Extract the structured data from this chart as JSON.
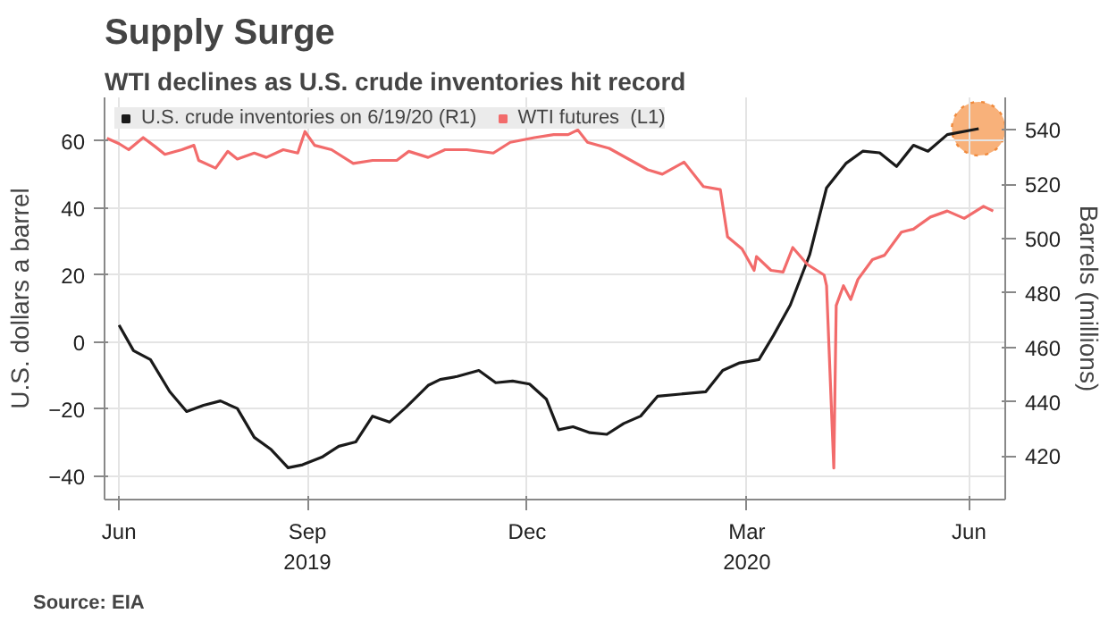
{
  "chart_data": {
    "type": "line",
    "title": "Supply Surge",
    "subtitle": "WTI declines as U.S. crude inventories hit record",
    "ylabel": "U.S. dollars a barrel",
    "y2label": "Barrels (millions)",
    "annotations": [
      "Source: EIA"
    ],
    "xlim": [
      "2019-06-23",
      "2020-06-30"
    ],
    "xticks": [
      {
        "value": "2019-06-29",
        "label": "Jun"
      },
      {
        "value": "2019-09-15",
        "label": "Sep\n2019"
      },
      {
        "value": "2019-12-15",
        "label": "Dec"
      },
      {
        "value": "2020-03-15",
        "label": "Mar\n2020"
      },
      {
        "value": "2020-06-15",
        "label": "Jun"
      }
    ],
    "ylim": [
      -47,
      73
    ],
    "yticks": [
      -40,
      -20,
      0,
      20,
      40,
      60
    ],
    "y2lim": [
      404,
      552
    ],
    "y2ticks": [
      420,
      440,
      460,
      480,
      500,
      520,
      540
    ],
    "grid": true,
    "legend": "top left",
    "line_style": "solid",
    "series": [
      {
        "name": "U.S. crude inventories on 6/19/20 (R1)",
        "color": "#1a1a1a",
        "axis": "y2",
        "x": [
          "2019-06-29",
          "2019-07-05",
          "2019-07-12",
          "2019-07-20",
          "2019-07-27",
          "2019-08-03",
          "2019-08-10",
          "2019-08-17",
          "2019-08-24",
          "2019-08-31",
          "2019-09-07",
          "2019-09-13",
          "2019-09-21",
          "2019-09-28",
          "2019-10-05",
          "2019-10-12",
          "2019-10-19",
          "2019-10-26",
          "2019-11-04",
          "2019-11-09",
          "2019-11-16",
          "2019-11-25",
          "2019-12-02",
          "2019-12-09",
          "2019-12-16",
          "2019-12-23",
          "2019-12-28",
          "2020-01-03",
          "2020-01-10",
          "2020-01-17",
          "2020-01-24",
          "2020-01-31",
          "2020-02-07",
          "2020-02-27",
          "2020-03-05",
          "2020-03-12",
          "2020-03-20",
          "2020-03-26",
          "2020-04-02",
          "2020-04-10",
          "2020-04-17",
          "2020-04-25",
          "2020-05-02",
          "2020-05-09",
          "2020-05-16",
          "2020-05-23",
          "2020-05-29",
          "2020-06-06",
          "2020-06-19"
        ],
        "values": [
          468.2,
          458.8,
          455.5,
          443.7,
          436.4,
          438.7,
          440.3,
          437.5,
          426.9,
          422.4,
          415.7,
          416.8,
          419.6,
          423.6,
          425.2,
          434.7,
          432.5,
          438.1,
          446.0,
          448.2,
          449.3,
          451.5,
          447.0,
          447.6,
          446.5,
          440.9,
          429.7,
          430.8,
          428.6,
          428.0,
          432.0,
          434.7,
          442.0,
          443.7,
          451.5,
          454.3,
          455.5,
          464.4,
          475.6,
          494.1,
          518.7,
          527.7,
          532.2,
          531.6,
          526.6,
          534.4,
          532.2,
          538.3,
          540.5
        ]
      },
      {
        "name": "WTI futures  (L1)",
        "color": "#f26b6b",
        "x": [
          "2019-06-24",
          "2019-06-29",
          "2019-07-03",
          "2019-07-09",
          "2019-07-14",
          "2019-07-18",
          "2019-07-25",
          "2019-07-30",
          "2019-08-01",
          "2019-08-08",
          "2019-08-13",
          "2019-08-17",
          "2019-08-24",
          "2019-08-29",
          "2019-09-05",
          "2019-09-11",
          "2019-09-14",
          "2019-09-18",
          "2019-09-25",
          "2019-10-04",
          "2019-10-12",
          "2019-10-22",
          "2019-10-27",
          "2019-11-04",
          "2019-11-11",
          "2019-11-20",
          "2019-12-01",
          "2019-12-08",
          "2019-12-18",
          "2019-12-26",
          "2020-01-01",
          "2020-01-05",
          "2020-01-09",
          "2020-01-18",
          "2020-01-26",
          "2020-02-03",
          "2020-02-09",
          "2020-02-18",
          "2020-02-26",
          "2020-03-04",
          "2020-03-07",
          "2020-03-13",
          "2020-03-18",
          "2020-03-19",
          "2020-03-25",
          "2020-03-30",
          "2020-04-03",
          "2020-04-09",
          "2020-04-16",
          "2020-04-17",
          "2020-04-20",
          "2020-04-21",
          "2020-04-24",
          "2020-04-27",
          "2020-04-30",
          "2020-05-06",
          "2020-05-11",
          "2020-05-18",
          "2020-05-23",
          "2020-05-30",
          "2020-06-06",
          "2020-06-13",
          "2020-06-21",
          "2020-06-25"
        ],
        "values": [
          60.8,
          59.2,
          57.4,
          61.0,
          58.3,
          56.0,
          57.4,
          58.7,
          54.2,
          51.9,
          56.9,
          54.6,
          56.4,
          55.1,
          57.4,
          56.4,
          62.8,
          58.7,
          57.4,
          53.3,
          54.2,
          54.2,
          56.9,
          55.1,
          57.4,
          57.4,
          56.4,
          59.6,
          61.0,
          61.9,
          61.9,
          63.3,
          59.6,
          57.8,
          54.6,
          51.4,
          50.1,
          53.7,
          46.4,
          45.5,
          31.4,
          27.8,
          21.4,
          25.5,
          21.4,
          20.9,
          28.2,
          23.2,
          20.0,
          16.8,
          -37.6,
          10.9,
          16.8,
          12.7,
          18.7,
          24.6,
          25.9,
          32.8,
          33.7,
          37.3,
          39.1,
          36.9,
          40.5,
          39.1
        ]
      },
      {
        "type": "scatter",
        "marker": "circle",
        "color": "#f7a86b",
        "axis": "y2",
        "x": [
          "2020-06-19"
        ],
        "values": [
          540.5
        ]
      }
    ]
  }
}
